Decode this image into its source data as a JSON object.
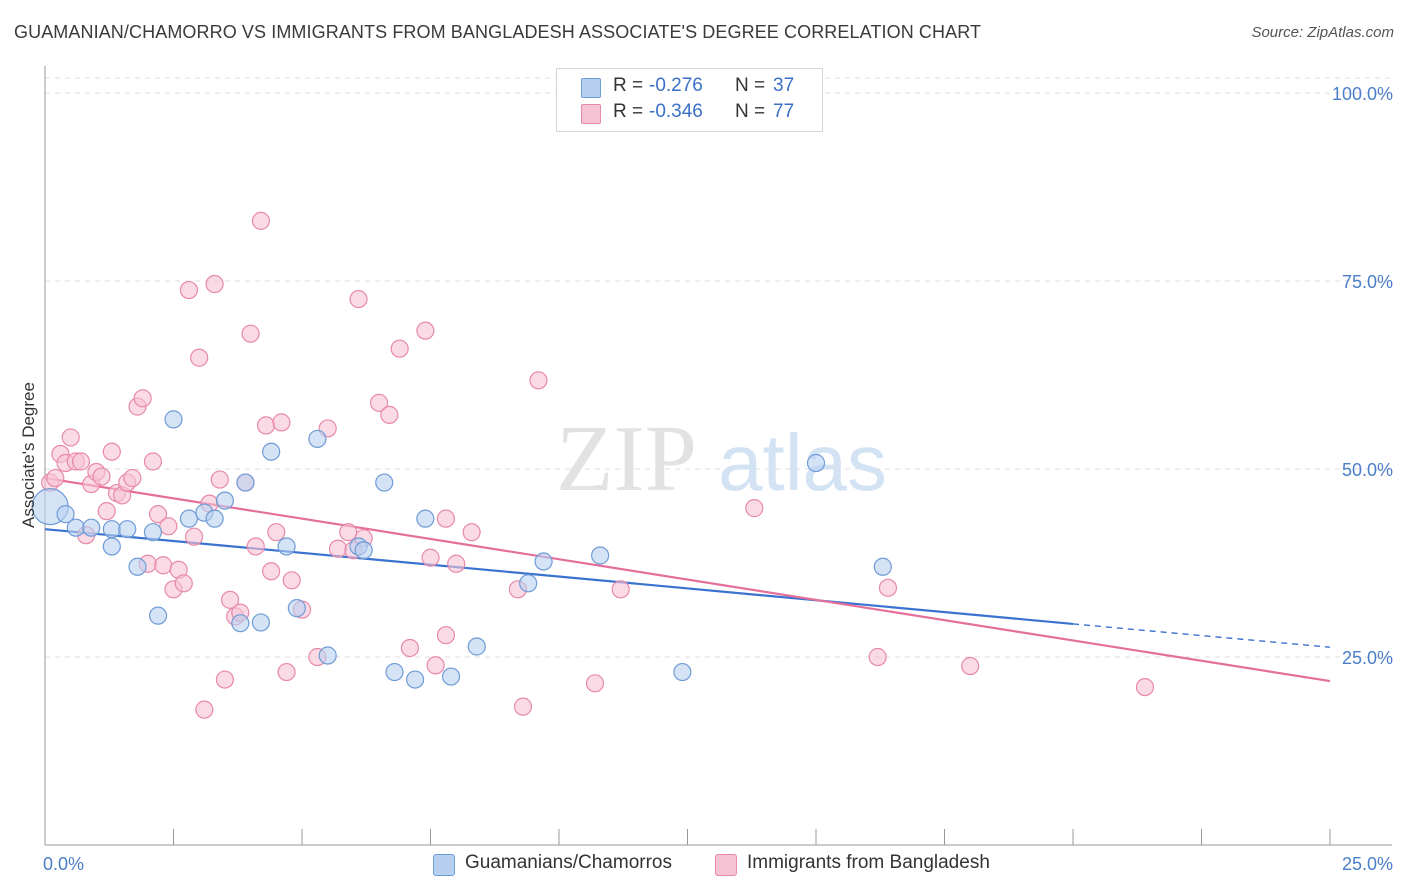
{
  "title": "GUAMANIAN/CHAMORRO VS IMMIGRANTS FROM BANGLADESH ASSOCIATE'S DEGREE CORRELATION CHART",
  "source": "Source: ZipAtlas.com",
  "watermark": {
    "zip": "ZIP",
    "atlas": "atlas"
  },
  "colors": {
    "blue_fill": "#b8d0f0",
    "blue_stroke": "#6f9bd6",
    "blue_line": "#3a72cf",
    "pink_fill": "#f6c3d4",
    "pink_stroke": "#e889a9",
    "pink_line": "#e56f9a",
    "accent_text": "#3b6fc9"
  },
  "legend": {
    "rows": [
      {
        "r_label": "R =",
        "r_value": "-0.276",
        "n_label": "N =",
        "n_value": "37",
        "color": "#b8d0f0",
        "border": "#6f9bd6"
      },
      {
        "r_label": "R =",
        "r_value": "-0.346",
        "n_label": "N =",
        "n_value": "77",
        "color": "#f6c3d4",
        "border": "#e889a9"
      }
    ]
  },
  "bottom_legend": [
    "Guamanians/Chamorros",
    "Immigrants from Bangladesh"
  ],
  "chart_data": {
    "type": "scatter",
    "title": "GUAMANIAN/CHAMORRO VS IMMIGRANTS FROM BANGLADESH ASSOCIATE'S DEGREE CORRELATION CHART",
    "xlabel": "",
    "ylabel": "Associate's Degree",
    "xlim": [
      0,
      25
    ],
    "ylim": [
      0,
      102
    ],
    "x_tick_labels": [
      "0.0%",
      "25.0%"
    ],
    "y_ticks": [
      25,
      50,
      75,
      100
    ],
    "y_tick_labels": [
      "25.0%",
      "50.0%",
      "75.0%",
      "100.0%"
    ],
    "grid": true,
    "legend_position": "top-center",
    "series": [
      {
        "name": "Guamanians/Chamorros",
        "r": -0.276,
        "n": 37,
        "trend": {
          "x0": 0,
          "y0": 42.0,
          "x1": 20,
          "y1": 29.4,
          "dashed_to_x": 25,
          "dashed_to_y": 26.3
        },
        "points": [
          [
            0.1,
            45.0
          ],
          [
            0.4,
            44.0
          ],
          [
            0.6,
            42.2
          ],
          [
            0.9,
            42.2
          ],
          [
            1.3,
            42.0
          ],
          [
            1.6,
            42.0
          ],
          [
            1.3,
            39.7
          ],
          [
            1.8,
            37.0
          ],
          [
            2.1,
            41.6
          ],
          [
            2.2,
            30.5
          ],
          [
            2.5,
            56.6
          ],
          [
            2.8,
            43.4
          ],
          [
            3.1,
            44.2
          ],
          [
            3.3,
            43.4
          ],
          [
            3.5,
            45.8
          ],
          [
            3.8,
            29.5
          ],
          [
            3.9,
            48.2
          ],
          [
            4.2,
            29.6
          ],
          [
            4.4,
            52.3
          ],
          [
            4.7,
            39.7
          ],
          [
            4.9,
            31.5
          ],
          [
            5.3,
            54.0
          ],
          [
            5.5,
            25.2
          ],
          [
            6.1,
            39.7
          ],
          [
            6.2,
            39.2
          ],
          [
            6.6,
            48.2
          ],
          [
            6.8,
            23.0
          ],
          [
            7.2,
            22.0
          ],
          [
            7.4,
            43.4
          ],
          [
            7.9,
            22.4
          ],
          [
            8.4,
            26.4
          ],
          [
            9.4,
            34.8
          ],
          [
            9.7,
            37.7
          ],
          [
            10.8,
            38.5
          ],
          [
            12.4,
            23.0
          ],
          [
            15.0,
            50.8
          ],
          [
            16.3,
            37.0
          ]
        ]
      },
      {
        "name": "Immigrants from Bangladesh",
        "r": -0.346,
        "n": 77,
        "trend": {
          "x0": 0,
          "y0": 48.8,
          "x1": 25,
          "y1": 21.8
        },
        "points": [
          [
            0.1,
            48.2
          ],
          [
            0.2,
            48.8
          ],
          [
            0.3,
            52.0
          ],
          [
            0.4,
            50.8
          ],
          [
            0.5,
            54.2
          ],
          [
            0.6,
            51.0
          ],
          [
            0.7,
            51.0
          ],
          [
            0.8,
            41.2
          ],
          [
            0.9,
            48.0
          ],
          [
            1.0,
            49.6
          ],
          [
            1.1,
            49.0
          ],
          [
            1.2,
            44.4
          ],
          [
            1.3,
            52.3
          ],
          [
            1.4,
            46.8
          ],
          [
            1.5,
            46.5
          ],
          [
            1.6,
            48.2
          ],
          [
            1.7,
            48.8
          ],
          [
            1.8,
            58.3
          ],
          [
            1.9,
            59.4
          ],
          [
            2.0,
            37.4
          ],
          [
            2.1,
            51.0
          ],
          [
            2.2,
            44.0
          ],
          [
            2.3,
            37.2
          ],
          [
            2.4,
            42.4
          ],
          [
            2.5,
            34.0
          ],
          [
            2.6,
            36.6
          ],
          [
            2.7,
            34.8
          ],
          [
            2.8,
            73.8
          ],
          [
            2.9,
            41.0
          ],
          [
            3.0,
            64.8
          ],
          [
            3.1,
            18.0
          ],
          [
            3.2,
            45.4
          ],
          [
            3.3,
            74.6
          ],
          [
            3.4,
            48.6
          ],
          [
            3.5,
            22.0
          ],
          [
            3.6,
            32.6
          ],
          [
            3.7,
            30.4
          ],
          [
            3.8,
            30.9
          ],
          [
            3.9,
            48.2
          ],
          [
            4.0,
            68.0
          ],
          [
            4.1,
            39.7
          ],
          [
            4.2,
            83.0
          ],
          [
            4.3,
            55.8
          ],
          [
            4.4,
            36.4
          ],
          [
            4.5,
            41.6
          ],
          [
            4.6,
            56.2
          ],
          [
            4.7,
            23.0
          ],
          [
            4.8,
            35.2
          ],
          [
            5.0,
            31.3
          ],
          [
            5.3,
            25.0
          ],
          [
            5.5,
            55.4
          ],
          [
            5.7,
            39.4
          ],
          [
            5.9,
            41.6
          ],
          [
            6.0,
            39.2
          ],
          [
            6.1,
            72.6
          ],
          [
            6.2,
            40.8
          ],
          [
            6.5,
            58.8
          ],
          [
            6.7,
            57.2
          ],
          [
            6.9,
            66.0
          ],
          [
            7.1,
            26.2
          ],
          [
            7.4,
            68.4
          ],
          [
            7.5,
            38.2
          ],
          [
            7.6,
            23.9
          ],
          [
            7.8,
            43.4
          ],
          [
            8.0,
            37.4
          ],
          [
            8.3,
            41.6
          ],
          [
            9.2,
            34.0
          ],
          [
            9.3,
            18.4
          ],
          [
            9.6,
            61.8
          ],
          [
            10.7,
            21.5
          ],
          [
            11.2,
            34.0
          ],
          [
            13.8,
            44.8
          ],
          [
            16.2,
            25.0
          ],
          [
            16.4,
            34.2
          ],
          [
            18.0,
            23.8
          ],
          [
            21.4,
            21.0
          ],
          [
            7.8,
            27.9
          ]
        ]
      }
    ]
  }
}
